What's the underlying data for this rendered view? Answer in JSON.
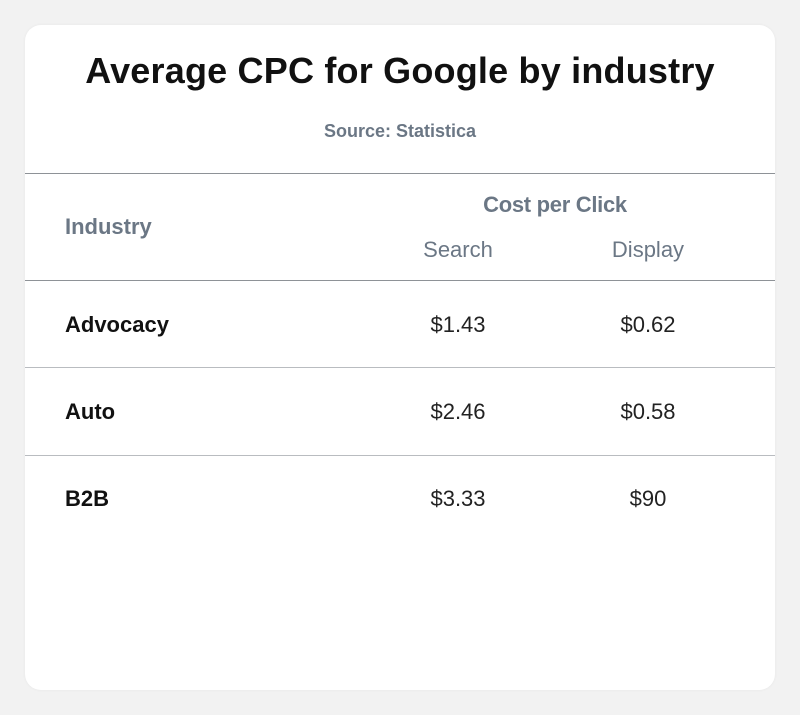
{
  "chart_data": {
    "type": "table",
    "title": "Average CPC for Google by industry",
    "subtitle": "Source: Statistica",
    "columns": {
      "industry_header": "Industry",
      "group_header": "Cost per Click",
      "sub_headers": [
        "Search",
        "Display"
      ]
    },
    "rows": [
      {
        "industry": "Advocacy",
        "search": "$1.43",
        "display": "$0.62"
      },
      {
        "industry": "Auto",
        "search": "$2.46",
        "display": "$0.58"
      },
      {
        "industry": "B2B",
        "search": "$3.33",
        "display": "$90"
      }
    ]
  }
}
